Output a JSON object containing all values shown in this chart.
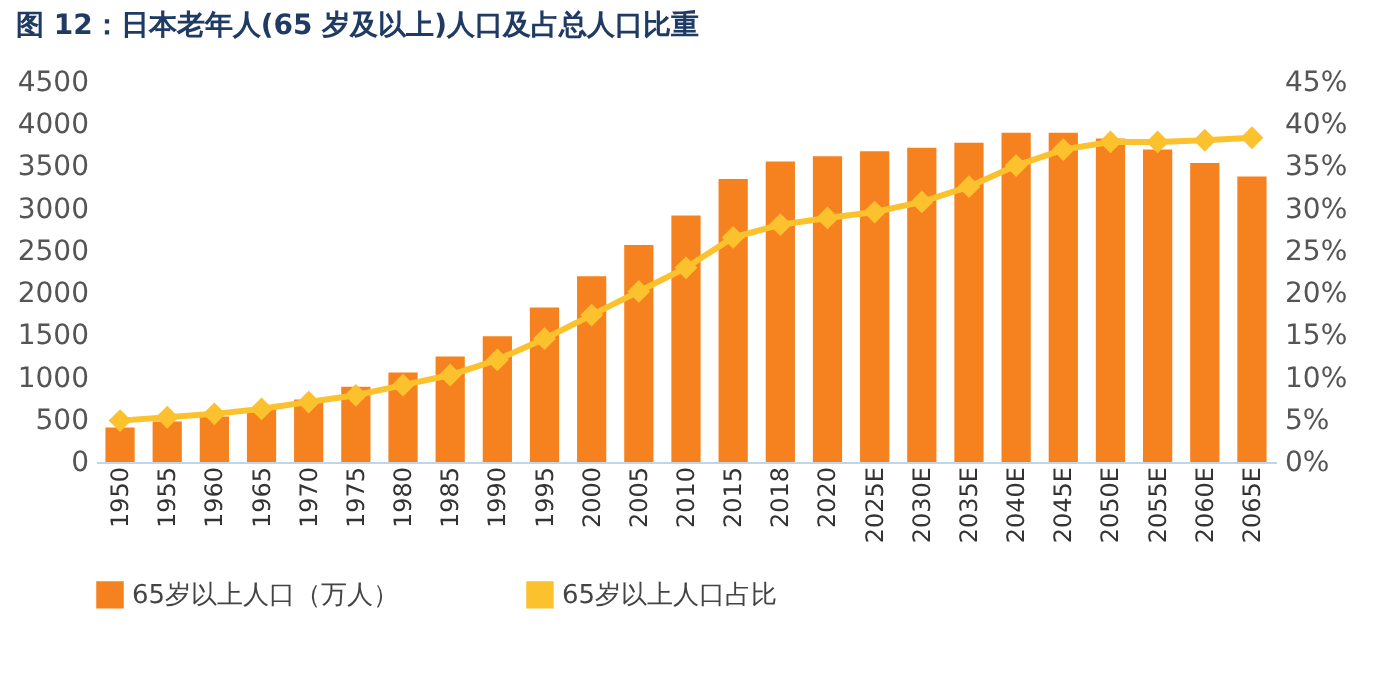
{
  "chart_data": {
    "type": "bar",
    "title": "图 12：日本老年人(65 岁及以上)人口及占总人口比重",
    "categories": [
      "1950",
      "1955",
      "1960",
      "1965",
      "1970",
      "1975",
      "1980",
      "1985",
      "1990",
      "1995",
      "2000",
      "2005",
      "2010",
      "2015",
      "2018",
      "2020",
      "2025E",
      "2030E",
      "2035E",
      "2040E",
      "2045E",
      "2050E",
      "2055E",
      "2060E",
      "2065E"
    ],
    "series": [
      {
        "name": "65岁以上人口（万人）",
        "color": "#f5821f",
        "values": [
          410,
          480,
          540,
          630,
          740,
          890,
          1060,
          1250,
          1490,
          1830,
          2200,
          2570,
          2920,
          3350,
          3560,
          3620,
          3680,
          3720,
          3780,
          3900,
          3900,
          3830,
          3700,
          3540,
          3380
        ]
      },
      {
        "name": "65岁以上人口占比",
        "type": "line",
        "axis": "y2",
        "color": "#fcc22d",
        "values": [
          4.9,
          5.3,
          5.7,
          6.3,
          7.1,
          7.9,
          9.1,
          10.3,
          12.1,
          14.6,
          17.4,
          20.2,
          23.0,
          26.6,
          28.1,
          28.9,
          29.6,
          30.8,
          32.6,
          35.1,
          37.0,
          37.9,
          37.9,
          38.1,
          38.4
        ]
      }
    ],
    "ylim": [
      0,
      4500
    ],
    "yticks": [
      0,
      500,
      1000,
      1500,
      2000,
      2500,
      3000,
      3500,
      4000,
      4500
    ],
    "y2lim": [
      0,
      45
    ],
    "y2ticks": [
      {
        "value": 0,
        "label": "0%"
      },
      {
        "value": 5,
        "label": "5%"
      },
      {
        "value": 10,
        "label": "10%"
      },
      {
        "value": 15,
        "label": "15%"
      },
      {
        "value": 20,
        "label": "20%"
      },
      {
        "value": 25,
        "label": "25%"
      },
      {
        "value": 30,
        "label": "30%"
      },
      {
        "value": 35,
        "label": "35%"
      },
      {
        "value": 40,
        "label": "40%"
      },
      {
        "value": 45,
        "label": "45%"
      }
    ],
    "marker": "diamond",
    "legend": "bottom",
    "grid": false
  }
}
